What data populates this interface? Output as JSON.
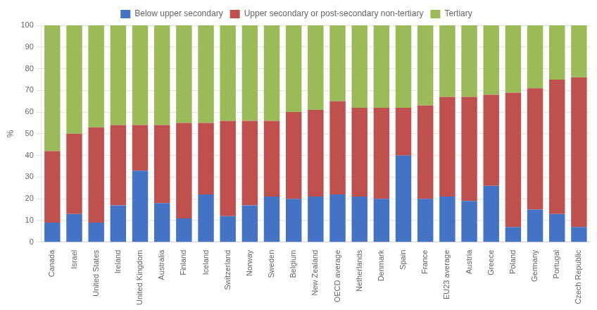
{
  "chart_data": {
    "type": "bar",
    "stacked": true,
    "categories": [
      "Canada",
      "Israel",
      "United States",
      "Ireland",
      "United Kingdom",
      "Australia",
      "Finland",
      "Iceland",
      "Switzerland",
      "Norway",
      "Sweden",
      "Belgium",
      "New Zealand",
      "OECD average",
      "Netherlands",
      "Denmark",
      "Spain",
      "France",
      "EU23 average",
      "Austria",
      "Greece",
      "Poland",
      "Germany",
      "Portugal",
      "Czech Republic"
    ],
    "series": [
      {
        "name": "Below upper secondary",
        "color": "#4472C4",
        "values": [
          9,
          13,
          9,
          17,
          33,
          18,
          11,
          22,
          12,
          17,
          21,
          20,
          21,
          22,
          21,
          20,
          40,
          20,
          21,
          19,
          26,
          7,
          15,
          13,
          7
        ]
      },
      {
        "name": "Upper secondary or post-secondary non-tertiary",
        "color": "#C0504D",
        "values": [
          33,
          37,
          44,
          37,
          21,
          36,
          44,
          33,
          44,
          39,
          35,
          40,
          40,
          43,
          41,
          42,
          22,
          43,
          46,
          48,
          42,
          62,
          56,
          62,
          69
        ]
      },
      {
        "name": "Tertiary",
        "color": "#9BBB59",
        "values": [
          58,
          50,
          47,
          46,
          46,
          46,
          45,
          45,
          44,
          44,
          44,
          40,
          39,
          35,
          38,
          38,
          38,
          37,
          33,
          33,
          32,
          31,
          29,
          25,
          24
        ]
      }
    ],
    "ylabel": "%",
    "ylim": [
      0,
      100
    ],
    "yticks": [
      0,
      10,
      20,
      30,
      40,
      50,
      60,
      70,
      80,
      90,
      100
    ],
    "grid": true,
    "legend": "top"
  }
}
